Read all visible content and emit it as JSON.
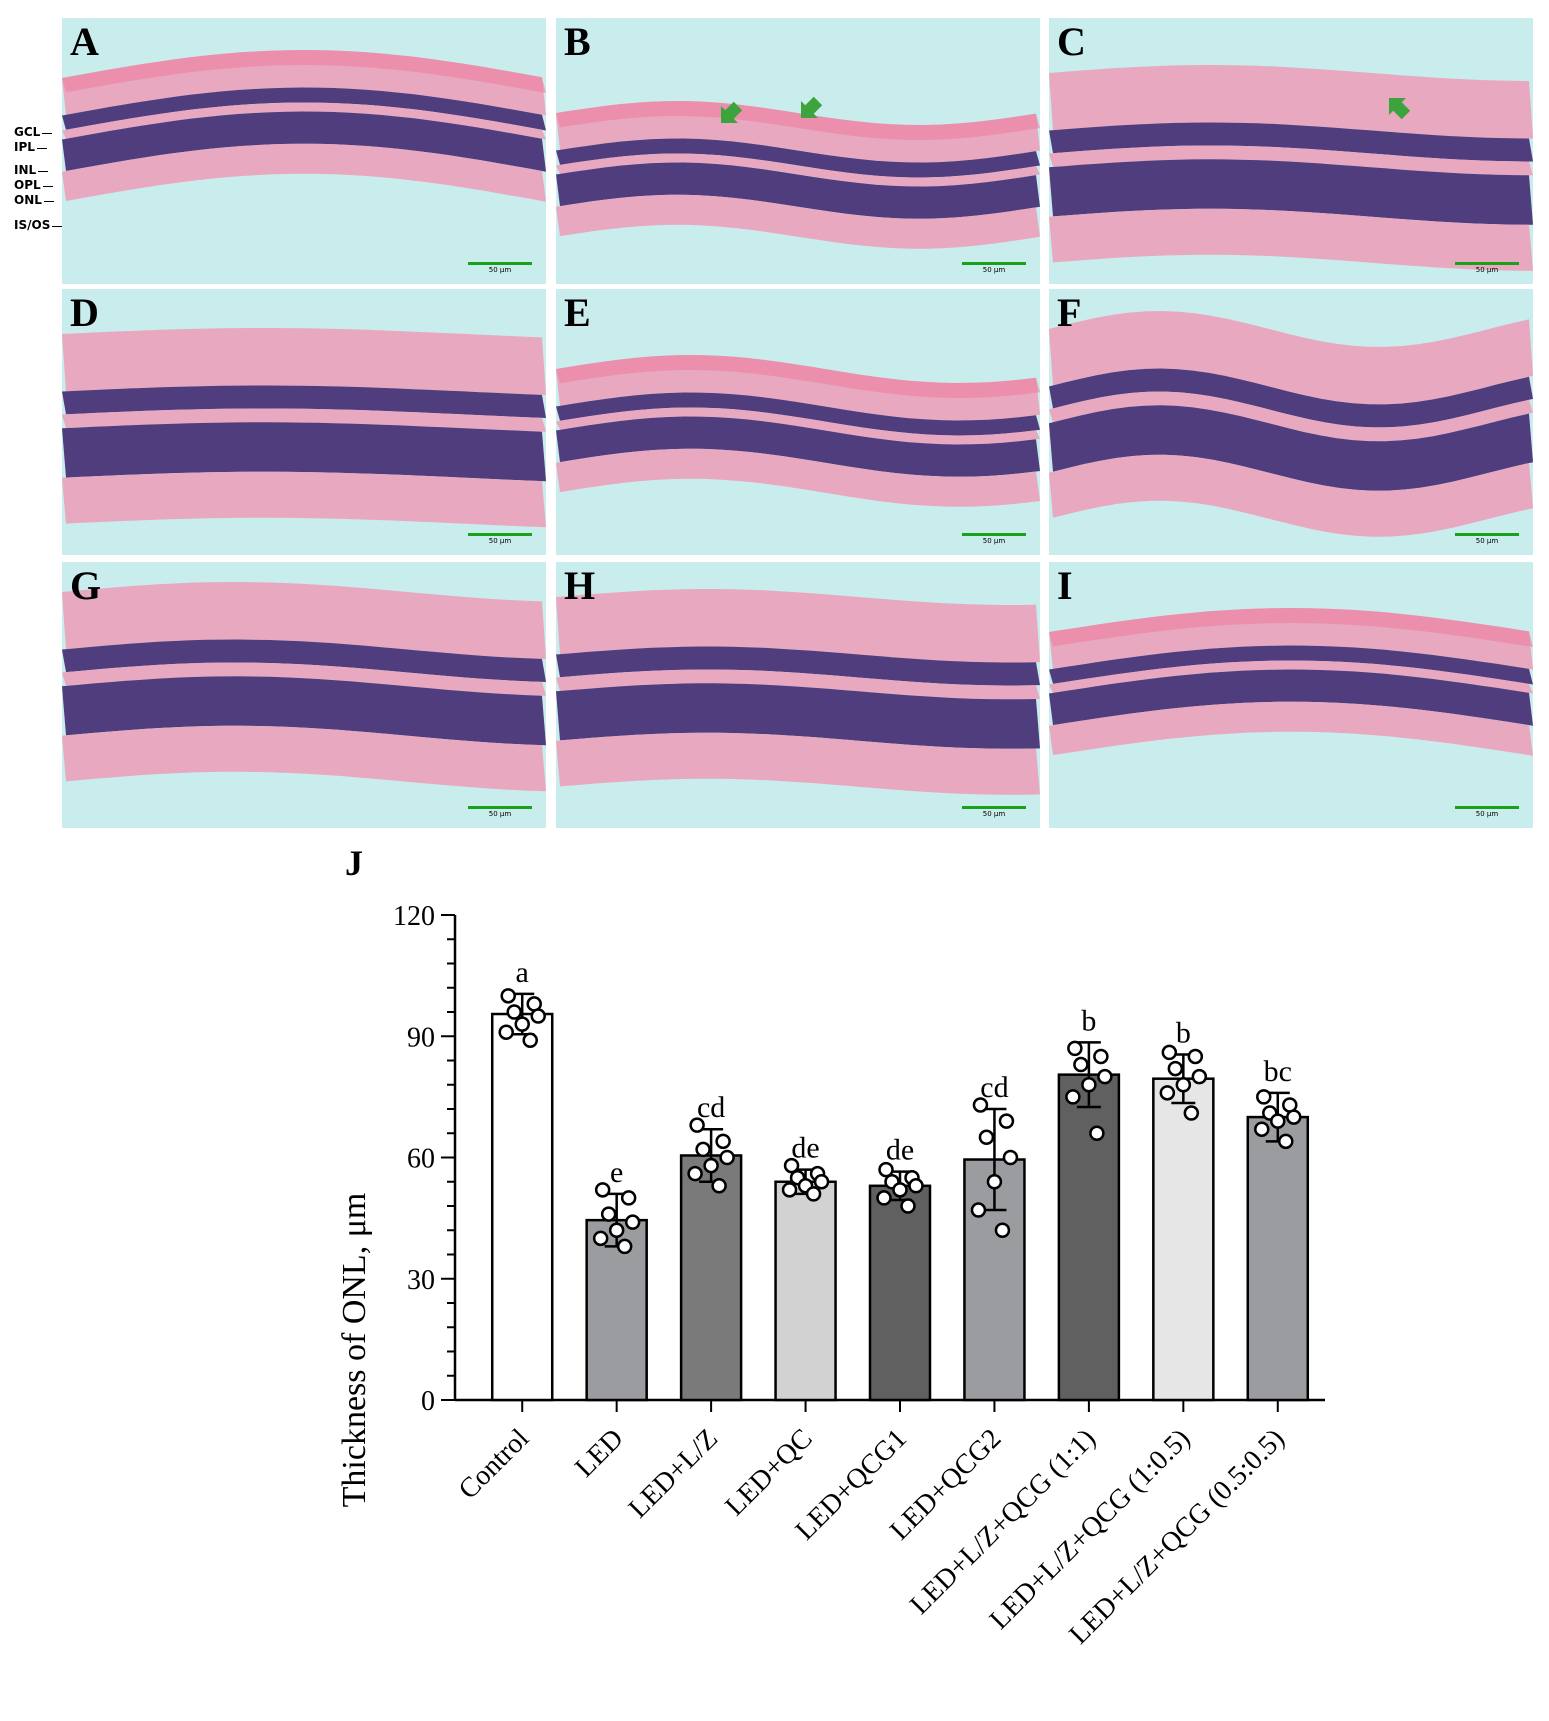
{
  "panels": [
    {
      "letter": "A",
      "scale": "50 μm"
    },
    {
      "letter": "B",
      "scale": "50 μm"
    },
    {
      "letter": "C",
      "scale": "50 μm"
    },
    {
      "letter": "D",
      "scale": "50 μm"
    },
    {
      "letter": "E",
      "scale": "50 μm"
    },
    {
      "letter": "F",
      "scale": "50 μm"
    },
    {
      "letter": "G",
      "scale": "50 μm"
    },
    {
      "letter": "H",
      "scale": "50 μm"
    },
    {
      "letter": "I",
      "scale": "50 μm"
    }
  ],
  "layer_labels": [
    "GCL",
    "IPL",
    "INL",
    "OPL",
    "ONL",
    "IS/OS"
  ],
  "colors": {
    "background_cyan": "#c9ecec",
    "tissue_pink": "#eaa4be",
    "tissue_deep_pink": "#ef7fa0",
    "nuclei_purple": "#3b1f6b",
    "arrow_green": "#3da33d",
    "scale_green": "#1aa11a"
  },
  "chart_data": {
    "type": "bar",
    "panel_label": "J",
    "ylabel": "Thickness of ONL, μm",
    "ylim": [
      0,
      120
    ],
    "yticks": [
      0,
      30,
      60,
      90,
      120
    ],
    "categories": [
      "Control",
      "LED",
      "LED+L/Z",
      "LED+QC",
      "LED+QCG1",
      "LED+QCG2",
      "LED+L/Z+QCG (1:1)",
      "LED+L/Z+QCG (1:0.5)",
      "LED+L/Z+QCG (0.5:0.5)"
    ],
    "values": [
      95.5,
      44.5,
      60.5,
      54,
      53,
      59.5,
      80.5,
      79.5,
      70
    ],
    "sd": [
      5,
      6.5,
      6.5,
      3,
      3.5,
      12.5,
      8,
      6,
      6
    ],
    "letters": [
      "a",
      "e",
      "cd",
      "de",
      "de",
      "cd",
      "b",
      "b",
      "bc"
    ],
    "bar_colors": [
      "#ffffff",
      "#9a9ca0",
      "#7a7a7a",
      "#d2d2d2",
      "#606060",
      "#9a9ca0",
      "#606060",
      "#e6e6e6",
      "#9a9ca0"
    ],
    "points": [
      [
        100,
        98,
        96,
        95,
        93,
        91,
        89
      ],
      [
        52,
        50,
        46,
        44,
        42,
        40,
        38
      ],
      [
        68,
        64,
        62,
        60,
        58,
        56,
        53
      ],
      [
        58,
        56,
        55,
        54,
        53,
        52,
        51
      ],
      [
        57,
        55,
        54,
        53,
        52,
        50,
        48
      ],
      [
        73,
        69,
        65,
        60,
        54,
        47,
        42
      ],
      [
        87,
        85,
        83,
        80,
        78,
        75,
        66
      ],
      [
        86,
        85,
        82,
        80,
        78,
        76,
        71
      ],
      [
        75,
        73,
        71,
        70,
        69,
        67,
        64
      ]
    ]
  }
}
